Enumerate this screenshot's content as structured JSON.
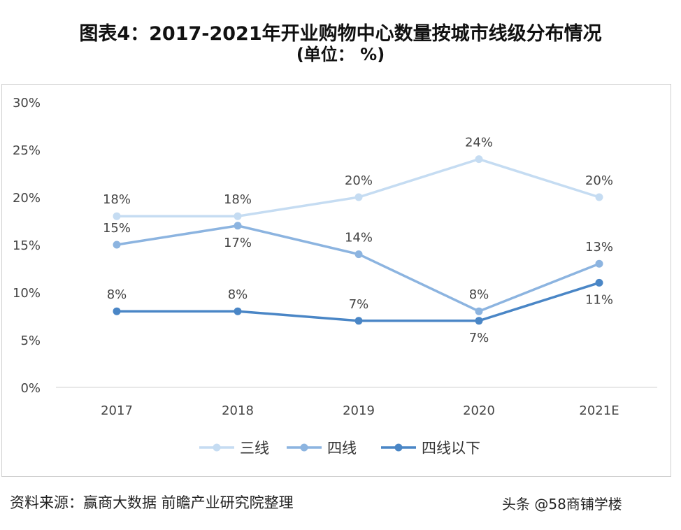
{
  "title_line1": "图表4：2017-2021年开业购物中心数量按城市线级分布情况",
  "title_line2": "(单位： %)",
  "source": "资料来源：赢商大数据 前瞻产业研究院整理",
  "watermark": "头条 @58商铺学楼",
  "chart_data": {
    "type": "line",
    "categories": [
      "2017",
      "2018",
      "2019",
      "2020",
      "2021E"
    ],
    "ylim": [
      0,
      30
    ],
    "yticks": [
      0,
      5,
      10,
      15,
      20,
      25,
      30
    ],
    "ytick_labels": [
      "0%",
      "5%",
      "10%",
      "15%",
      "20%",
      "25%",
      "30%"
    ],
    "grid": false,
    "legend_position": "bottom",
    "series": [
      {
        "name": "三线",
        "values": [
          18,
          18,
          20,
          24,
          20
        ],
        "labels": [
          "18%",
          "18%",
          "20%",
          "24%",
          "20%"
        ],
        "color": "#c5dcf2"
      },
      {
        "name": "四线",
        "values": [
          15,
          17,
          14,
          8,
          13
        ],
        "labels": [
          "15%",
          "17%",
          "14%",
          "8%",
          "13%"
        ],
        "color": "#8cb4e0"
      },
      {
        "name": "四线以下",
        "values": [
          8,
          8,
          7,
          7,
          11
        ],
        "labels": [
          "8%",
          "8%",
          "7%",
          "7%",
          "11%"
        ],
        "color": "#4a86c6"
      }
    ]
  }
}
